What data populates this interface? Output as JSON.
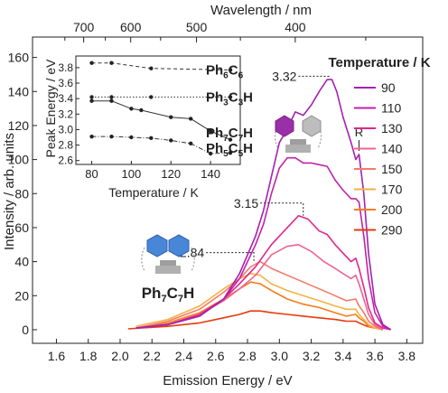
{
  "chart_data": {
    "type": "line",
    "xlabel": "Emission Energy / eV",
    "ylabel": "Intensity / arb. units",
    "x2label": "Wavelength / nm",
    "xlim": [
      1.45,
      3.9
    ],
    "ylim": [
      -8,
      172
    ],
    "x_ticks": [
      1.6,
      1.8,
      2.0,
      2.2,
      2.4,
      2.6,
      2.8,
      3.0,
      3.2,
      3.4,
      3.6,
      3.8
    ],
    "x_tick_labels": [
      "1.6",
      "1.8",
      "2.0",
      "2.2",
      "2.4",
      "2.6",
      "2.8",
      "3.0",
      "3.2",
      "3.4",
      "3.6",
      "3.8"
    ],
    "y_ticks": [
      0,
      20,
      40,
      60,
      80,
      100,
      120,
      140,
      160
    ],
    "y_tick_labels": [
      "0",
      "20",
      "40",
      "60",
      "80",
      "100",
      "120",
      "140",
      "160"
    ],
    "x2_ticks": [
      700,
      600,
      500,
      400
    ],
    "x2_tick_labels": [
      "700",
      "600",
      "500",
      "400"
    ],
    "x2_minor_ticks": [
      750,
      650,
      550,
      450,
      350
    ],
    "legend": {
      "title": "Temperature / K",
      "position": "right",
      "items": [
        {
          "label": "90",
          "color": "#a322b0"
        },
        {
          "label": "110",
          "color": "#c222a8"
        },
        {
          "label": "130",
          "color": "#e0278c"
        },
        {
          "label": "140",
          "color": "#f06292"
        },
        {
          "label": "150",
          "color": "#f47a66"
        },
        {
          "label": "170",
          "color": "#f7b044"
        },
        {
          "label": "200",
          "color": "#f47c16"
        },
        {
          "label": "290",
          "color": "#e53a0e"
        }
      ]
    },
    "series": [
      {
        "name": "90",
        "color": "#a322b0",
        "points": [
          [
            2.1,
            1
          ],
          [
            2.3,
            3
          ],
          [
            2.5,
            8
          ],
          [
            2.65,
            18
          ],
          [
            2.75,
            33
          ],
          [
            2.85,
            55
          ],
          [
            2.9,
            70
          ],
          [
            2.95,
            90
          ],
          [
            3.0,
            110
          ],
          [
            3.05,
            118
          ],
          [
            3.1,
            128
          ],
          [
            3.15,
            126
          ],
          [
            3.2,
            132
          ],
          [
            3.25,
            140
          ],
          [
            3.3,
            147
          ],
          [
            3.33,
            147
          ],
          [
            3.36,
            140
          ],
          [
            3.4,
            125
          ],
          [
            3.45,
            110
          ],
          [
            3.48,
            100
          ],
          [
            3.5,
            103
          ],
          [
            3.53,
            80
          ],
          [
            3.56,
            45
          ],
          [
            3.6,
            15
          ],
          [
            3.65,
            3
          ],
          [
            3.7,
            0
          ]
        ]
      },
      {
        "name": "110",
        "color": "#c222a8",
        "points": [
          [
            2.1,
            1
          ],
          [
            2.3,
            3
          ],
          [
            2.5,
            8
          ],
          [
            2.65,
            18
          ],
          [
            2.75,
            30
          ],
          [
            2.85,
            50
          ],
          [
            2.9,
            62
          ],
          [
            2.95,
            80
          ],
          [
            3.0,
            95
          ],
          [
            3.05,
            101
          ],
          [
            3.1,
            101
          ],
          [
            3.15,
            98
          ],
          [
            3.2,
            98
          ],
          [
            3.25,
            97
          ],
          [
            3.3,
            96
          ],
          [
            3.35,
            88
          ],
          [
            3.4,
            82
          ],
          [
            3.45,
            77
          ],
          [
            3.48,
            77
          ],
          [
            3.5,
            75
          ],
          [
            3.53,
            55
          ],
          [
            3.56,
            30
          ],
          [
            3.6,
            10
          ],
          [
            3.65,
            2
          ],
          [
            3.7,
            0
          ]
        ]
      },
      {
        "name": "130",
        "color": "#e0278c",
        "points": [
          [
            2.1,
            1
          ],
          [
            2.3,
            3
          ],
          [
            2.5,
            9
          ],
          [
            2.65,
            18
          ],
          [
            2.75,
            27
          ],
          [
            2.85,
            37
          ],
          [
            2.95,
            50
          ],
          [
            3.05,
            60
          ],
          [
            3.12,
            67
          ],
          [
            3.18,
            65
          ],
          [
            3.25,
            58
          ],
          [
            3.3,
            56
          ],
          [
            3.35,
            50
          ],
          [
            3.4,
            45
          ],
          [
            3.45,
            40
          ],
          [
            3.48,
            42
          ],
          [
            3.5,
            36
          ],
          [
            3.53,
            25
          ],
          [
            3.56,
            13
          ],
          [
            3.6,
            4
          ],
          [
            3.65,
            1
          ],
          [
            3.7,
            0
          ]
        ]
      },
      {
        "name": "140",
        "color": "#f06292",
        "points": [
          [
            2.1,
            1
          ],
          [
            2.3,
            3
          ],
          [
            2.5,
            9
          ],
          [
            2.65,
            17
          ],
          [
            2.75,
            24
          ],
          [
            2.85,
            32
          ],
          [
            2.95,
            44
          ],
          [
            3.05,
            49
          ],
          [
            3.12,
            50
          ],
          [
            3.2,
            46
          ],
          [
            3.28,
            40
          ],
          [
            3.35,
            36
          ],
          [
            3.4,
            33
          ],
          [
            3.45,
            30
          ],
          [
            3.48,
            32
          ],
          [
            3.5,
            27
          ],
          [
            3.53,
            18
          ],
          [
            3.56,
            9
          ],
          [
            3.6,
            3
          ],
          [
            3.65,
            0
          ]
        ]
      },
      {
        "name": "150",
        "color": "#f47a66",
        "points": [
          [
            2.1,
            1
          ],
          [
            2.3,
            5
          ],
          [
            2.5,
            12
          ],
          [
            2.65,
            22
          ],
          [
            2.75,
            30
          ],
          [
            2.82,
            37
          ],
          [
            2.88,
            40
          ],
          [
            2.95,
            36
          ],
          [
            3.05,
            32
          ],
          [
            3.15,
            28
          ],
          [
            3.25,
            24
          ],
          [
            3.35,
            20
          ],
          [
            3.42,
            17
          ],
          [
            3.48,
            18
          ],
          [
            3.5,
            14
          ],
          [
            3.53,
            10
          ],
          [
            3.56,
            5
          ],
          [
            3.6,
            2
          ],
          [
            3.65,
            0
          ]
        ]
      },
      {
        "name": "170",
        "color": "#f7b044",
        "points": [
          [
            2.1,
            2
          ],
          [
            2.3,
            6
          ],
          [
            2.5,
            14
          ],
          [
            2.65,
            24
          ],
          [
            2.75,
            30
          ],
          [
            2.82,
            33
          ],
          [
            2.88,
            32
          ],
          [
            2.95,
            27
          ],
          [
            3.05,
            23
          ],
          [
            3.15,
            20
          ],
          [
            3.25,
            17
          ],
          [
            3.35,
            14
          ],
          [
            3.42,
            12
          ],
          [
            3.48,
            12
          ],
          [
            3.5,
            9
          ],
          [
            3.53,
            6
          ],
          [
            3.56,
            3
          ],
          [
            3.6,
            1
          ],
          [
            3.65,
            0
          ]
        ]
      },
      {
        "name": "200",
        "color": "#f47c16",
        "points": [
          [
            2.1,
            1
          ],
          [
            2.3,
            4
          ],
          [
            2.5,
            10
          ],
          [
            2.65,
            18
          ],
          [
            2.75,
            24
          ],
          [
            2.82,
            28
          ],
          [
            2.88,
            27
          ],
          [
            2.95,
            23
          ],
          [
            3.05,
            18
          ],
          [
            3.15,
            15
          ],
          [
            3.25,
            13
          ],
          [
            3.35,
            10
          ],
          [
            3.42,
            8
          ],
          [
            3.48,
            9
          ],
          [
            3.5,
            7
          ],
          [
            3.53,
            5
          ],
          [
            3.56,
            2
          ],
          [
            3.6,
            1
          ],
          [
            3.65,
            0
          ]
        ]
      },
      {
        "name": "290",
        "color": "#e53a0e",
        "points": [
          [
            2.05,
            0.5
          ],
          [
            2.3,
            2
          ],
          [
            2.5,
            4
          ],
          [
            2.65,
            7
          ],
          [
            2.75,
            9
          ],
          [
            2.82,
            11
          ],
          [
            2.88,
            11
          ],
          [
            2.95,
            10
          ],
          [
            3.05,
            9
          ],
          [
            3.15,
            8
          ],
          [
            3.25,
            7
          ],
          [
            3.35,
            6
          ],
          [
            3.42,
            5
          ],
          [
            3.48,
            5
          ],
          [
            3.5,
            4
          ],
          [
            3.55,
            2
          ],
          [
            3.6,
            1
          ],
          [
            3.65,
            0
          ]
        ]
      }
    ],
    "annotations": [
      {
        "text": "3.32",
        "x": 3.32,
        "y": 149
      },
      {
        "text": "3.15",
        "x": 3.15,
        "y": 67
      },
      {
        "text": "2.84",
        "x": 2.84,
        "y": 40
      },
      {
        "text": "R",
        "x": 3.5,
        "y": 104
      },
      {
        "text": "Ph7C7H",
        "label_main": "Ph",
        "label_sub1": "7",
        "label_mid": "C",
        "label_sub2": "7",
        "label_end": "H"
      }
    ],
    "inset": {
      "type": "line",
      "xlabel": "Temperature / K",
      "ylabel": "Peak Energy / eV",
      "xlim": [
        72,
        155
      ],
      "ylim": [
        2.55,
        3.95
      ],
      "x_ticks": [
        80,
        100,
        120,
        140
      ],
      "x_tick_labels": [
        "80",
        "100",
        "120",
        "140"
      ],
      "y_ticks": [
        2.6,
        2.8,
        3.0,
        3.2,
        3.4,
        3.6,
        3.8
      ],
      "y_tick_labels": [
        "2.6",
        "2.8",
        "3.0",
        "3.2",
        "3.4",
        "3.6",
        "3.8"
      ],
      "series": [
        {
          "name": "Ph6C6",
          "label_main": "Ph",
          "label_sub1": "6",
          "label_mid": "C",
          "label_sub2": "6",
          "label_end": "",
          "style": "dashed",
          "points": [
            [
              80,
              3.86
            ],
            [
              90,
              3.86
            ],
            [
              110,
              3.79
            ],
            [
              150,
              3.77
            ]
          ]
        },
        {
          "name": "Ph3C3H",
          "label_main": "Ph",
          "label_sub1": "3",
          "label_mid": "C",
          "label_sub2": "3",
          "label_end": "H",
          "style": "dotted",
          "points": [
            [
              80,
              3.42
            ],
            [
              90,
              3.42
            ],
            [
              110,
              3.42
            ],
            [
              150,
              3.42
            ]
          ]
        },
        {
          "name": "Ph7C7H",
          "label_main": "Ph",
          "label_sub1": "7",
          "label_mid": "C",
          "label_sub2": "7",
          "label_end": "H",
          "style": "solid",
          "points": [
            [
              80,
              3.37
            ],
            [
              90,
              3.37
            ],
            [
              100,
              3.27
            ],
            [
              105,
              3.25
            ],
            [
              120,
              3.16
            ],
            [
              130,
              3.14
            ],
            [
              140,
              2.98
            ],
            [
              150,
              2.87
            ]
          ]
        },
        {
          "name": "Ph5C5H",
          "label_main": "Ph",
          "label_sub1": "5",
          "label_mid": "C",
          "label_sub2": "5",
          "label_end": "H",
          "style": "dashdot",
          "points": [
            [
              80,
              2.91
            ],
            [
              90,
              2.91
            ],
            [
              100,
              2.9
            ],
            [
              110,
              2.89
            ],
            [
              120,
              2.86
            ],
            [
              130,
              2.82
            ],
            [
              140,
              2.69
            ],
            [
              150,
              2.7
            ]
          ]
        }
      ]
    }
  }
}
